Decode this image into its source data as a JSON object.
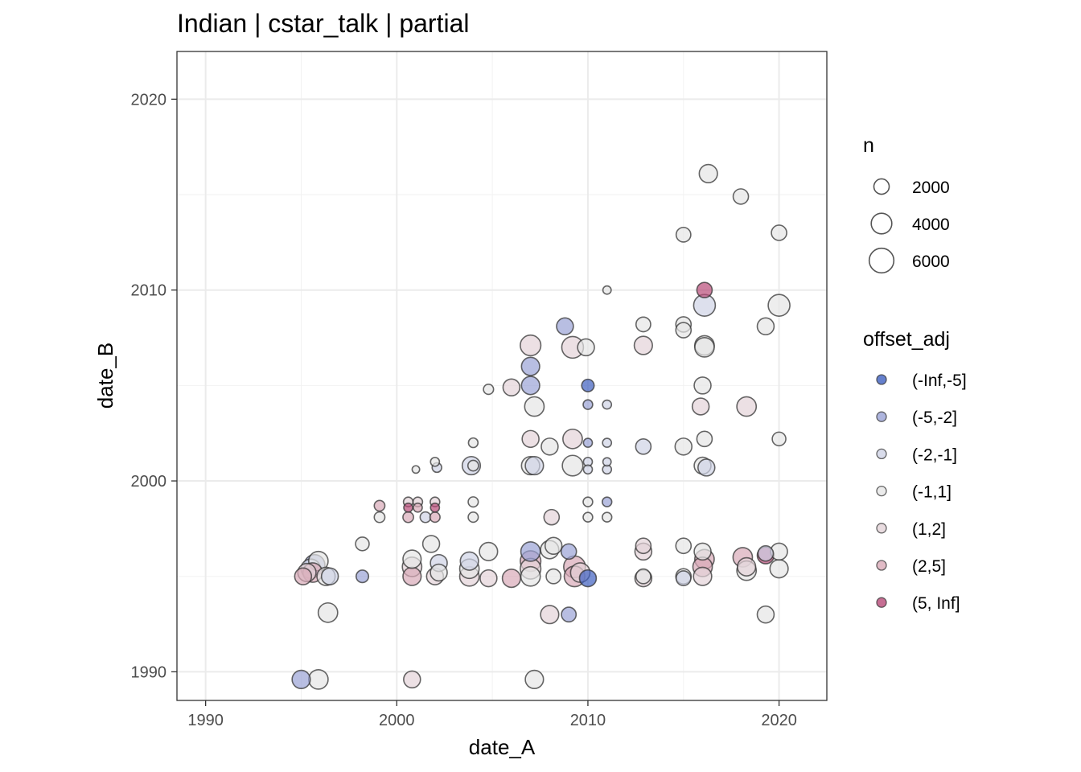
{
  "chart_data": {
    "type": "scatter",
    "title": "Indian | cstar_talk | partial",
    "xlabel": "date_A",
    "ylabel": "date_B",
    "xlim": [
      1988.5,
      2022.5
    ],
    "ylim": [
      1988.5,
      2022.5
    ],
    "x_ticks": [
      1990,
      2000,
      2010,
      2020
    ],
    "y_ticks": [
      1990,
      2000,
      2010,
      2020
    ],
    "x_tick_labels": [
      "1990",
      "2000",
      "2010",
      "2020"
    ],
    "y_tick_labels": [
      "1990",
      "2000",
      "2010",
      "2020"
    ],
    "grid": true,
    "legend_position": "right",
    "size_legend": {
      "title": "n",
      "entries": [
        {
          "label": "2000",
          "value": 2000
        },
        {
          "label": "4000",
          "value": 4000
        },
        {
          "label": "6000",
          "value": 6000
        }
      ]
    },
    "color_legend": {
      "title": "offset_adj",
      "entries": [
        {
          "label": "(-Inf,-5]",
          "color": "#3f60c0"
        },
        {
          "label": "(-5,-2]",
          "color": "#9aa3d6"
        },
        {
          "label": "(-2,-1]",
          "color": "#cfd3e6"
        },
        {
          "label": "(-1,1]",
          "color": "#e6e6e6"
        },
        {
          "label": "(1,2]",
          "color": "#e4d3d8"
        },
        {
          "label": "(2,5]",
          "color": "#d9aab8"
        },
        {
          "label": "(5, Inf]",
          "color": "#b84a78"
        }
      ]
    },
    "points": [
      {
        "x": 1995.0,
        "y": 1989.6,
        "n": 3000,
        "offset": "(-5,-2]"
      },
      {
        "x": 1995.9,
        "y": 1989.6,
        "n": 3500,
        "offset": "(-1,1]"
      },
      {
        "x": 1995.1,
        "y": 1995.0,
        "n": 2500,
        "offset": "(2,5]"
      },
      {
        "x": 1995.3,
        "y": 1995.2,
        "n": 3000,
        "offset": "(1,2]"
      },
      {
        "x": 1995.5,
        "y": 1995.4,
        "n": 3500,
        "offset": "(-2,-1]"
      },
      {
        "x": 1995.7,
        "y": 1995.6,
        "n": 4000,
        "offset": "(-5,-2]"
      },
      {
        "x": 1995.9,
        "y": 1995.8,
        "n": 3500,
        "offset": "(-1,1]"
      },
      {
        "x": 1995.6,
        "y": 1995.2,
        "n": 3500,
        "offset": "(2,5]"
      },
      {
        "x": 1996.3,
        "y": 1995.0,
        "n": 3000,
        "offset": "(-1,1]"
      },
      {
        "x": 1996.5,
        "y": 1995.0,
        "n": 2500,
        "offset": "(-2,-1]"
      },
      {
        "x": 1996.4,
        "y": 1993.1,
        "n": 3500,
        "offset": "(-1,1]"
      },
      {
        "x": 1998.2,
        "y": 1996.7,
        "n": 1500,
        "offset": "(-1,1]"
      },
      {
        "x": 1998.2,
        "y": 1995.0,
        "n": 1200,
        "offset": "(-5,-2]"
      },
      {
        "x": 1999.1,
        "y": 1998.7,
        "n": 800,
        "offset": "(2,5]"
      },
      {
        "x": 1999.1,
        "y": 1998.1,
        "n": 800,
        "offset": "(-1,1]"
      },
      {
        "x": 2000.6,
        "y": 1998.9,
        "n": 600,
        "offset": "(1,2]"
      },
      {
        "x": 2000.6,
        "y": 1998.6,
        "n": 500,
        "offset": "(5, Inf]"
      },
      {
        "x": 2000.6,
        "y": 1998.1,
        "n": 800,
        "offset": "(2,5]"
      },
      {
        "x": 2001.0,
        "y": 2000.6,
        "n": 300,
        "offset": "(-1,1]"
      },
      {
        "x": 2001.1,
        "y": 1998.9,
        "n": 600,
        "offset": "(1,2]"
      },
      {
        "x": 2001.1,
        "y": 1998.6,
        "n": 500,
        "offset": "(2,5]"
      },
      {
        "x": 2001.5,
        "y": 1998.1,
        "n": 800,
        "offset": "(-2,-1]"
      },
      {
        "x": 2002.0,
        "y": 2001.0,
        "n": 500,
        "offset": "(-1,1]"
      },
      {
        "x": 2002.1,
        "y": 2000.7,
        "n": 600,
        "offset": "(-2,-1]"
      },
      {
        "x": 2002.0,
        "y": 1998.9,
        "n": 600,
        "offset": "(1,2]"
      },
      {
        "x": 2002.0,
        "y": 1998.6,
        "n": 500,
        "offset": "(5, Inf]"
      },
      {
        "x": 2002.0,
        "y": 1998.1,
        "n": 700,
        "offset": "(2,5]"
      },
      {
        "x": 2000.8,
        "y": 1995.5,
        "n": 3500,
        "offset": "(1,2]"
      },
      {
        "x": 2000.8,
        "y": 1995.0,
        "n": 3000,
        "offset": "(2,5]"
      },
      {
        "x": 2000.8,
        "y": 1995.9,
        "n": 3000,
        "offset": "(-1,1]"
      },
      {
        "x": 2000.8,
        "y": 1989.6,
        "n": 2500,
        "offset": "(1,2]"
      },
      {
        "x": 2001.8,
        "y": 1996.7,
        "n": 2500,
        "offset": "(-1,1]"
      },
      {
        "x": 2002.0,
        "y": 1995.0,
        "n": 2500,
        "offset": "(1,2]"
      },
      {
        "x": 2002.2,
        "y": 1995.7,
        "n": 2500,
        "offset": "(-2,-1]"
      },
      {
        "x": 2002.2,
        "y": 1995.2,
        "n": 2500,
        "offset": "(-1,1]"
      },
      {
        "x": 2003.8,
        "y": 1995.0,
        "n": 3500,
        "offset": "(1,2]"
      },
      {
        "x": 2003.8,
        "y": 1995.4,
        "n": 3500,
        "offset": "(-1,1]"
      },
      {
        "x": 2003.8,
        "y": 1995.8,
        "n": 3000,
        "offset": "(-2,-1]"
      },
      {
        "x": 2003.9,
        "y": 2000.8,
        "n": 3000,
        "offset": "(-2,-1]"
      },
      {
        "x": 2004.0,
        "y": 2002.0,
        "n": 600,
        "offset": "(-1,1]"
      },
      {
        "x": 2004.0,
        "y": 2000.8,
        "n": 800,
        "offset": "(-1,1]"
      },
      {
        "x": 2004.0,
        "y": 1998.9,
        "n": 700,
        "offset": "(-1,1]"
      },
      {
        "x": 2004.0,
        "y": 1998.1,
        "n": 700,
        "offset": "(-1,1]"
      },
      {
        "x": 2004.8,
        "y": 2004.8,
        "n": 700,
        "offset": "(-1,1]"
      },
      {
        "x": 2004.8,
        "y": 1996.3,
        "n": 3000,
        "offset": "(-1,1]"
      },
      {
        "x": 2004.8,
        "y": 1994.9,
        "n": 2500,
        "offset": "(1,2]"
      },
      {
        "x": 2006.0,
        "y": 2004.9,
        "n": 2500,
        "offset": "(1,2]"
      },
      {
        "x": 2006.0,
        "y": 1994.9,
        "n": 3000,
        "offset": "(2,5]"
      },
      {
        "x": 2007.0,
        "y": 2007.1,
        "n": 4000,
        "offset": "(1,2]"
      },
      {
        "x": 2007.0,
        "y": 2006.0,
        "n": 3000,
        "offset": "(-5,-2]"
      },
      {
        "x": 2007.0,
        "y": 2005.0,
        "n": 3000,
        "offset": "(-5,-2]"
      },
      {
        "x": 2007.2,
        "y": 2003.9,
        "n": 3500,
        "offset": "(-1,1]"
      },
      {
        "x": 2007.0,
        "y": 2002.2,
        "n": 2500,
        "offset": "(1,2]"
      },
      {
        "x": 2007.0,
        "y": 2000.8,
        "n": 3000,
        "offset": "(-1,1]"
      },
      {
        "x": 2007.2,
        "y": 2000.8,
        "n": 3000,
        "offset": "(-2,-1]"
      },
      {
        "x": 2007.0,
        "y": 1996.3,
        "n": 3500,
        "offset": "(-5,-2]"
      },
      {
        "x": 2007.0,
        "y": 1995.8,
        "n": 4000,
        "offset": "(2,5]"
      },
      {
        "x": 2007.0,
        "y": 1995.4,
        "n": 4000,
        "offset": "(1,2]"
      },
      {
        "x": 2007.0,
        "y": 1995.0,
        "n": 3500,
        "offset": "(-1,1]"
      },
      {
        "x": 2007.2,
        "y": 1989.6,
        "n": 3000,
        "offset": "(-1,1]"
      },
      {
        "x": 2008.0,
        "y": 2001.8,
        "n": 2500,
        "offset": "(-1,1]"
      },
      {
        "x": 2008.1,
        "y": 1998.1,
        "n": 2000,
        "offset": "(1,2]"
      },
      {
        "x": 2008.2,
        "y": 1996.6,
        "n": 2500,
        "offset": "(-1,1]"
      },
      {
        "x": 2008.0,
        "y": 1996.4,
        "n": 3000,
        "offset": "(-1,1]"
      },
      {
        "x": 2008.2,
        "y": 1995.0,
        "n": 1800,
        "offset": "(-1,1]"
      },
      {
        "x": 2008.0,
        "y": 1993.0,
        "n": 3000,
        "offset": "(1,2]"
      },
      {
        "x": 2008.8,
        "y": 2008.1,
        "n": 2500,
        "offset": "(-5,-2]"
      },
      {
        "x": 2009.2,
        "y": 2007.0,
        "n": 4500,
        "offset": "(1,2]"
      },
      {
        "x": 2009.9,
        "y": 2007.0,
        "n": 2500,
        "offset": "(-1,1]"
      },
      {
        "x": 2009.2,
        "y": 2002.2,
        "n": 3500,
        "offset": "(1,2]"
      },
      {
        "x": 2009.2,
        "y": 2000.8,
        "n": 4000,
        "offset": "(-1,1]"
      },
      {
        "x": 2009.0,
        "y": 1996.3,
        "n": 2000,
        "offset": "(-5,-2]"
      },
      {
        "x": 2009.3,
        "y": 1995.5,
        "n": 4500,
        "offset": "(2,5]"
      },
      {
        "x": 2009.3,
        "y": 1995.0,
        "n": 4000,
        "offset": "(2,5]"
      },
      {
        "x": 2009.6,
        "y": 1995.2,
        "n": 3500,
        "offset": "(1,2]"
      },
      {
        "x": 2009.0,
        "y": 1993.0,
        "n": 1800,
        "offset": "(-5,-2]"
      },
      {
        "x": 2010.0,
        "y": 1994.9,
        "n": 2500,
        "offset": "(-Inf,-5]"
      },
      {
        "x": 2010.0,
        "y": 2005.0,
        "n": 1200,
        "offset": "(-Inf,-5]"
      },
      {
        "x": 2010.0,
        "y": 2004.0,
        "n": 600,
        "offset": "(-5,-2]"
      },
      {
        "x": 2010.0,
        "y": 2002.0,
        "n": 500,
        "offset": "(-5,-2]"
      },
      {
        "x": 2010.0,
        "y": 2001.0,
        "n": 500,
        "offset": "(-2,-1]"
      },
      {
        "x": 2010.0,
        "y": 2000.6,
        "n": 500,
        "offset": "(-2,-1]"
      },
      {
        "x": 2010.0,
        "y": 1998.9,
        "n": 600,
        "offset": "(-1,1]"
      },
      {
        "x": 2010.0,
        "y": 1998.1,
        "n": 600,
        "offset": "(-1,1]"
      },
      {
        "x": 2011.0,
        "y": 2010.0,
        "n": 400,
        "offset": "(-1,1]"
      },
      {
        "x": 2011.0,
        "y": 2004.0,
        "n": 500,
        "offset": "(-2,-1]"
      },
      {
        "x": 2011.0,
        "y": 2002.0,
        "n": 500,
        "offset": "(-2,-1]"
      },
      {
        "x": 2011.0,
        "y": 2001.0,
        "n": 400,
        "offset": "(-2,-1]"
      },
      {
        "x": 2011.0,
        "y": 2000.6,
        "n": 500,
        "offset": "(-2,-1]"
      },
      {
        "x": 2011.0,
        "y": 1998.9,
        "n": 600,
        "offset": "(-5,-2]"
      },
      {
        "x": 2011.0,
        "y": 1998.1,
        "n": 600,
        "offset": "(-1,1]"
      },
      {
        "x": 2012.9,
        "y": 2008.2,
        "n": 1800,
        "offset": "(-1,1]"
      },
      {
        "x": 2012.9,
        "y": 2007.1,
        "n": 3000,
        "offset": "(1,2]"
      },
      {
        "x": 2012.9,
        "y": 2001.8,
        "n": 2000,
        "offset": "(-2,-1]"
      },
      {
        "x": 2012.9,
        "y": 1996.6,
        "n": 2000,
        "offset": "(1,2]"
      },
      {
        "x": 2012.9,
        "y": 1996.3,
        "n": 2500,
        "offset": "(1,2]"
      },
      {
        "x": 2012.9,
        "y": 1994.9,
        "n": 2500,
        "offset": "(1,2]"
      },
      {
        "x": 2012.9,
        "y": 1995.0,
        "n": 1800,
        "offset": "(-1,1]"
      },
      {
        "x": 2015.0,
        "y": 2012.9,
        "n": 1800,
        "offset": "(-1,1]"
      },
      {
        "x": 2015.0,
        "y": 2008.2,
        "n": 2000,
        "offset": "(-1,1]"
      },
      {
        "x": 2015.0,
        "y": 2007.9,
        "n": 2000,
        "offset": "(-1,1]"
      },
      {
        "x": 2015.0,
        "y": 2001.8,
        "n": 2500,
        "offset": "(-1,1]"
      },
      {
        "x": 2015.0,
        "y": 1996.6,
        "n": 2000,
        "offset": "(-1,1]"
      },
      {
        "x": 2015.0,
        "y": 1995.0,
        "n": 2000,
        "offset": "(-1,1]"
      },
      {
        "x": 2015.0,
        "y": 1994.9,
        "n": 1800,
        "offset": "(-2,-1]"
      },
      {
        "x": 2016.3,
        "y": 2016.1,
        "n": 3000,
        "offset": "(-1,1]"
      },
      {
        "x": 2016.1,
        "y": 2010.0,
        "n": 2000,
        "offset": "(5, Inf]"
      },
      {
        "x": 2016.1,
        "y": 2009.2,
        "n": 4500,
        "offset": "(-2,-1]"
      },
      {
        "x": 2016.1,
        "y": 2007.1,
        "n": 3500,
        "offset": "(-1,1]"
      },
      {
        "x": 2016.1,
        "y": 2007.0,
        "n": 3500,
        "offset": "(-1,1]"
      },
      {
        "x": 2016.0,
        "y": 2005.0,
        "n": 2500,
        "offset": "(-1,1]"
      },
      {
        "x": 2015.9,
        "y": 2003.9,
        "n": 2500,
        "offset": "(1,2]"
      },
      {
        "x": 2016.1,
        "y": 2002.2,
        "n": 2000,
        "offset": "(-1,1]"
      },
      {
        "x": 2016.0,
        "y": 2000.8,
        "n": 2500,
        "offset": "(-1,1]"
      },
      {
        "x": 2016.2,
        "y": 2000.7,
        "n": 2500,
        "offset": "(-2,-1]"
      },
      {
        "x": 2016.0,
        "y": 1996.3,
        "n": 2500,
        "offset": "(-1,1]"
      },
      {
        "x": 2016.1,
        "y": 1995.9,
        "n": 3500,
        "offset": "(2,5]"
      },
      {
        "x": 2016.0,
        "y": 1995.5,
        "n": 3500,
        "offset": "(2,5]"
      },
      {
        "x": 2016.0,
        "y": 1995.0,
        "n": 3000,
        "offset": "(1,2]"
      },
      {
        "x": 2018.0,
        "y": 2014.9,
        "n": 2000,
        "offset": "(-1,1]"
      },
      {
        "x": 2018.3,
        "y": 2003.9,
        "n": 3500,
        "offset": "(1,2]"
      },
      {
        "x": 2018.1,
        "y": 1996.0,
        "n": 3500,
        "offset": "(2,5]"
      },
      {
        "x": 2018.3,
        "y": 1995.5,
        "n": 3000,
        "offset": "(1,2]"
      },
      {
        "x": 2018.3,
        "y": 1995.3,
        "n": 3500,
        "offset": "(-1,1]"
      },
      {
        "x": 2019.3,
        "y": 2008.1,
        "n": 2500,
        "offset": "(-1,1]"
      },
      {
        "x": 2019.3,
        "y": 1996.1,
        "n": 2500,
        "offset": "(5, Inf]"
      },
      {
        "x": 2019.3,
        "y": 1993.0,
        "n": 2500,
        "offset": "(-1,1]"
      },
      {
        "x": 2019.3,
        "y": 1996.2,
        "n": 2000,
        "offset": "(-2,-1]"
      },
      {
        "x": 2020.0,
        "y": 2013.0,
        "n": 2000,
        "offset": "(-1,1]"
      },
      {
        "x": 2020.0,
        "y": 2009.2,
        "n": 4500,
        "offset": "(-1,1]"
      },
      {
        "x": 2020.0,
        "y": 2002.2,
        "n": 1500,
        "offset": "(-1,1]"
      },
      {
        "x": 2020.0,
        "y": 1996.3,
        "n": 2500,
        "offset": "(-1,1]"
      },
      {
        "x": 2020.0,
        "y": 1995.4,
        "n": 3000,
        "offset": "(-1,1]"
      }
    ]
  }
}
